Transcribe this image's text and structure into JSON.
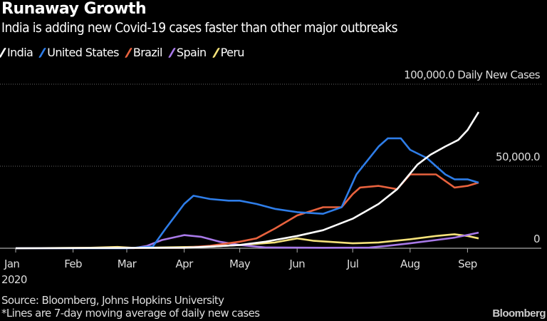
{
  "title": "Runaway Growth",
  "subtitle": "India is adding new Covid-19 cases faster than other major outbreaks",
  "source": "Source: Bloomberg, Johns Hopkins University",
  "note": "*Lines are 7-day moving average of daily new cases",
  "brand": "Bloomberg",
  "chart_data": {
    "type": "line",
    "title": "Runaway Growth",
    "subtitle": "India is adding new Covid-19 cases faster than other major outbreaks",
    "ylabel": "Daily New Cases",
    "ylim": [
      0,
      100000
    ],
    "xlim": [
      "2020-01-01",
      "2020-10-15"
    ],
    "y_ticks": [
      {
        "value": 0,
        "label": "0"
      },
      {
        "value": 50000,
        "label": "50,000.0"
      },
      {
        "value": 100000,
        "label": "100,000.0 Daily New Cases"
      }
    ],
    "x_ticks": [
      {
        "date": "2020-01-01",
        "label": "Jan",
        "sub": "2020"
      },
      {
        "date": "2020-02-01",
        "label": "Feb"
      },
      {
        "date": "2020-03-01",
        "label": "Mar"
      },
      {
        "date": "2020-04-01",
        "label": "Apr"
      },
      {
        "date": "2020-05-01",
        "label": "May"
      },
      {
        "date": "2020-06-01",
        "label": "Jun"
      },
      {
        "date": "2020-07-01",
        "label": "Jul"
      },
      {
        "date": "2020-08-01",
        "label": "Aug"
      },
      {
        "date": "2020-09-01",
        "label": "Sep"
      }
    ],
    "grid": true,
    "legend": "top-left",
    "series": [
      {
        "name": "Peru",
        "color": "#f5e27a",
        "points": [
          [
            "2020-01-01",
            0
          ],
          [
            "2020-02-10",
            300
          ],
          [
            "2020-02-25",
            800
          ],
          [
            "2020-03-05",
            200
          ],
          [
            "2020-04-15",
            1000
          ],
          [
            "2020-05-01",
            2000
          ],
          [
            "2020-05-20",
            3500
          ],
          [
            "2020-06-01",
            6000
          ],
          [
            "2020-06-10",
            4500
          ],
          [
            "2020-07-01",
            3000
          ],
          [
            "2020-07-15",
            3500
          ],
          [
            "2020-08-01",
            5500
          ],
          [
            "2020-08-15",
            7500
          ],
          [
            "2020-08-25",
            8500
          ],
          [
            "2020-09-01",
            7500
          ],
          [
            "2020-09-07",
            6000
          ]
        ]
      },
      {
        "name": "Spain",
        "color": "#a879e8",
        "points": [
          [
            "2020-01-01",
            0
          ],
          [
            "2020-03-05",
            100
          ],
          [
            "2020-03-12",
            1500
          ],
          [
            "2020-03-20",
            5000
          ],
          [
            "2020-04-01",
            8000
          ],
          [
            "2020-04-10",
            7000
          ],
          [
            "2020-04-20",
            4000
          ],
          [
            "2020-05-01",
            2000
          ],
          [
            "2020-05-15",
            500
          ],
          [
            "2020-06-15",
            300
          ],
          [
            "2020-07-10",
            400
          ],
          [
            "2020-07-20",
            1500
          ],
          [
            "2020-08-01",
            3000
          ],
          [
            "2020-08-15",
            5000
          ],
          [
            "2020-08-25",
            6500
          ],
          [
            "2020-09-07",
            9500
          ]
        ]
      },
      {
        "name": "Brazil",
        "color": "#e8623e",
        "points": [
          [
            "2020-01-01",
            0
          ],
          [
            "2020-04-01",
            300
          ],
          [
            "2020-04-15",
            1500
          ],
          [
            "2020-05-01",
            4000
          ],
          [
            "2020-05-10",
            6000
          ],
          [
            "2020-05-20",
            12000
          ],
          [
            "2020-06-01",
            20000
          ],
          [
            "2020-06-15",
            25000
          ],
          [
            "2020-06-25",
            25000
          ],
          [
            "2020-07-01",
            33000
          ],
          [
            "2020-07-05",
            37000
          ],
          [
            "2020-07-15",
            38000
          ],
          [
            "2020-07-25",
            36000
          ],
          [
            "2020-08-01",
            45000
          ],
          [
            "2020-08-15",
            45000
          ],
          [
            "2020-08-25",
            37000
          ],
          [
            "2020-09-01",
            38000
          ],
          [
            "2020-09-07",
            40000
          ]
        ]
      },
      {
        "name": "United States",
        "color": "#2e7de8",
        "points": [
          [
            "2020-01-01",
            0
          ],
          [
            "2020-03-01",
            0
          ],
          [
            "2020-03-15",
            1000
          ],
          [
            "2020-03-22",
            12000
          ],
          [
            "2020-04-01",
            27000
          ],
          [
            "2020-04-06",
            32000
          ],
          [
            "2020-04-15",
            30000
          ],
          [
            "2020-04-25",
            29000
          ],
          [
            "2020-05-01",
            29000
          ],
          [
            "2020-05-10",
            27000
          ],
          [
            "2020-05-20",
            24000
          ],
          [
            "2020-06-01",
            22000
          ],
          [
            "2020-06-15",
            21000
          ],
          [
            "2020-06-25",
            25000
          ],
          [
            "2020-07-03",
            45000
          ],
          [
            "2020-07-15",
            62000
          ],
          [
            "2020-07-20",
            67000
          ],
          [
            "2020-07-27",
            67000
          ],
          [
            "2020-08-01",
            60000
          ],
          [
            "2020-08-10",
            55000
          ],
          [
            "2020-08-20",
            45000
          ],
          [
            "2020-08-25",
            42000
          ],
          [
            "2020-09-01",
            42000
          ],
          [
            "2020-09-07",
            40000
          ]
        ]
      },
      {
        "name": "India",
        "color": "#ffffff",
        "points": [
          [
            "2020-01-01",
            0
          ],
          [
            "2020-04-01",
            300
          ],
          [
            "2020-04-15",
            1000
          ],
          [
            "2020-05-01",
            2000
          ],
          [
            "2020-05-15",
            4000
          ],
          [
            "2020-06-01",
            7500
          ],
          [
            "2020-06-15",
            11000
          ],
          [
            "2020-07-01",
            18000
          ],
          [
            "2020-07-15",
            27000
          ],
          [
            "2020-07-25",
            36000
          ],
          [
            "2020-08-05",
            51000
          ],
          [
            "2020-08-12",
            57000
          ],
          [
            "2020-08-20",
            62000
          ],
          [
            "2020-08-27",
            66000
          ],
          [
            "2020-09-01",
            72000
          ],
          [
            "2020-09-07",
            83000
          ]
        ]
      }
    ]
  },
  "legend": [
    {
      "name": "India",
      "color": "#ffffff"
    },
    {
      "name": "United States",
      "color": "#2e7de8"
    },
    {
      "name": "Brazil",
      "color": "#e8623e"
    },
    {
      "name": "Spain",
      "color": "#a879e8"
    },
    {
      "name": "Peru",
      "color": "#f5e27a"
    }
  ]
}
